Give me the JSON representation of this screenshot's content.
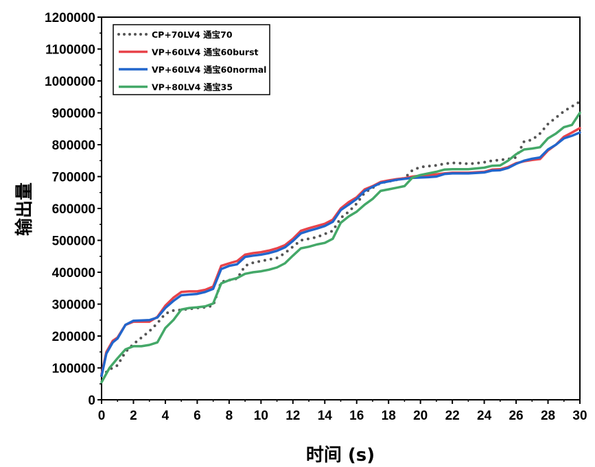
{
  "chart_data": {
    "type": "line",
    "xlabel": "时间 (s)",
    "ylabel": "输出量",
    "xlim": [
      0,
      30
    ],
    "ylim": [
      0,
      1200000
    ],
    "x_ticks": [
      0,
      2,
      4,
      6,
      8,
      10,
      12,
      14,
      16,
      18,
      20,
      22,
      24,
      26,
      28,
      30
    ],
    "y_ticks": [
      0,
      100000,
      200000,
      300000,
      400000,
      500000,
      600000,
      700000,
      800000,
      900000,
      1000000,
      1100000,
      1200000
    ],
    "grid": false,
    "legend_position": "top-left",
    "series": [
      {
        "name": "CP+70LV4 通宝70",
        "color": "#555555",
        "style": "dotted",
        "points": [
          [
            0,
            75000
          ],
          [
            0.5,
            95000
          ],
          [
            1,
            108000
          ],
          [
            1.5,
            150000
          ],
          [
            2,
            175000
          ],
          [
            2.5,
            195000
          ],
          [
            3,
            215000
          ],
          [
            3.5,
            240000
          ],
          [
            4,
            270000
          ],
          [
            4.5,
            280000
          ],
          [
            5,
            282000
          ],
          [
            5.5,
            285000
          ],
          [
            6,
            288000
          ],
          [
            6.5,
            290000
          ],
          [
            7,
            295000
          ],
          [
            7.5,
            370000
          ],
          [
            8,
            375000
          ],
          [
            8.5,
            380000
          ],
          [
            9,
            420000
          ],
          [
            9.5,
            430000
          ],
          [
            10,
            435000
          ],
          [
            10.5,
            440000
          ],
          [
            11,
            445000
          ],
          [
            11.5,
            460000
          ],
          [
            12,
            480000
          ],
          [
            12.5,
            500000
          ],
          [
            13,
            505000
          ],
          [
            13.5,
            510000
          ],
          [
            14,
            520000
          ],
          [
            14.5,
            530000
          ],
          [
            15,
            570000
          ],
          [
            15.5,
            590000
          ],
          [
            16,
            615000
          ],
          [
            16.5,
            650000
          ],
          [
            17,
            665000
          ],
          [
            17.5,
            680000
          ],
          [
            18,
            685000
          ],
          [
            18.5,
            690000
          ],
          [
            19,
            695000
          ],
          [
            19.5,
            720000
          ],
          [
            20,
            730000
          ],
          [
            20.5,
            733000
          ],
          [
            21,
            735000
          ],
          [
            21.5,
            740000
          ],
          [
            22,
            743000
          ],
          [
            22.5,
            742000
          ],
          [
            23,
            740000
          ],
          [
            23.5,
            742000
          ],
          [
            24,
            745000
          ],
          [
            24.5,
            750000
          ],
          [
            25,
            752000
          ],
          [
            25.5,
            755000
          ],
          [
            26,
            760000
          ],
          [
            26.5,
            810000
          ],
          [
            27,
            815000
          ],
          [
            27.5,
            835000
          ],
          [
            28,
            865000
          ],
          [
            28.5,
            885000
          ],
          [
            29,
            905000
          ],
          [
            29.5,
            920000
          ],
          [
            30,
            935000
          ]
        ]
      },
      {
        "name": "VP+60LV4 通宝60burst",
        "color": "#e8434a",
        "style": "solid",
        "points": [
          [
            0,
            80000
          ],
          [
            0.3,
            150000
          ],
          [
            0.7,
            185000
          ],
          [
            1,
            195000
          ],
          [
            1.5,
            235000
          ],
          [
            2,
            245000
          ],
          [
            3,
            245000
          ],
          [
            3.5,
            260000
          ],
          [
            4,
            295000
          ],
          [
            4.5,
            320000
          ],
          [
            5,
            338000
          ],
          [
            5.5,
            340000
          ],
          [
            6,
            340000
          ],
          [
            6.5,
            345000
          ],
          [
            7,
            355000
          ],
          [
            7.5,
            420000
          ],
          [
            8,
            428000
          ],
          [
            8.5,
            435000
          ],
          [
            9,
            455000
          ],
          [
            9.5,
            460000
          ],
          [
            10,
            463000
          ],
          [
            10.5,
            468000
          ],
          [
            11,
            475000
          ],
          [
            11.5,
            485000
          ],
          [
            12,
            505000
          ],
          [
            12.5,
            530000
          ],
          [
            13,
            538000
          ],
          [
            13.5,
            545000
          ],
          [
            14,
            552000
          ],
          [
            14.5,
            565000
          ],
          [
            15,
            600000
          ],
          [
            15.5,
            620000
          ],
          [
            16,
            635000
          ],
          [
            16.5,
            660000
          ],
          [
            17,
            670000
          ],
          [
            17.5,
            683000
          ],
          [
            18,
            688000
          ],
          [
            18.5,
            692000
          ],
          [
            19,
            695000
          ],
          [
            19.5,
            700000
          ],
          [
            20,
            703000
          ],
          [
            20.5,
            705000
          ],
          [
            21,
            707000
          ],
          [
            21.5,
            710000
          ],
          [
            22,
            712000
          ],
          [
            23,
            712000
          ],
          [
            24,
            715000
          ],
          [
            24.5,
            722000
          ],
          [
            25,
            723000
          ],
          [
            25.5,
            730000
          ],
          [
            26,
            742000
          ],
          [
            26.5,
            748000
          ],
          [
            27,
            752000
          ],
          [
            27.5,
            755000
          ],
          [
            28,
            782000
          ],
          [
            28.5,
            800000
          ],
          [
            29,
            825000
          ],
          [
            29.5,
            838000
          ],
          [
            30,
            852000
          ]
        ]
      },
      {
        "name": "VP+60LV4 通宝60normal",
        "color": "#2266cc",
        "style": "solid",
        "points": [
          [
            0,
            75000
          ],
          [
            0.3,
            145000
          ],
          [
            0.7,
            180000
          ],
          [
            1,
            192000
          ],
          [
            1.5,
            235000
          ],
          [
            2,
            248000
          ],
          [
            3,
            250000
          ],
          [
            3.5,
            258000
          ],
          [
            4,
            288000
          ],
          [
            4.5,
            310000
          ],
          [
            5,
            328000
          ],
          [
            5.5,
            330000
          ],
          [
            6,
            332000
          ],
          [
            6.5,
            338000
          ],
          [
            7,
            348000
          ],
          [
            7.5,
            410000
          ],
          [
            8,
            420000
          ],
          [
            8.5,
            425000
          ],
          [
            9,
            448000
          ],
          [
            9.5,
            452000
          ],
          [
            10,
            455000
          ],
          [
            10.5,
            460000
          ],
          [
            11,
            467000
          ],
          [
            11.5,
            478000
          ],
          [
            12,
            498000
          ],
          [
            12.5,
            522000
          ],
          [
            13,
            530000
          ],
          [
            13.5,
            537000
          ],
          [
            14,
            545000
          ],
          [
            14.5,
            558000
          ],
          [
            15,
            595000
          ],
          [
            15.5,
            612000
          ],
          [
            16,
            630000
          ],
          [
            16.5,
            655000
          ],
          [
            17,
            668000
          ],
          [
            17.5,
            680000
          ],
          [
            18,
            685000
          ],
          [
            18.5,
            690000
          ],
          [
            19,
            693000
          ],
          [
            19.5,
            696000
          ],
          [
            20,
            697000
          ],
          [
            20.5,
            698000
          ],
          [
            21,
            700000
          ],
          [
            21.5,
            708000
          ],
          [
            22,
            710000
          ],
          [
            23,
            710000
          ],
          [
            24,
            713000
          ],
          [
            24.5,
            719000
          ],
          [
            25,
            720000
          ],
          [
            25.5,
            727000
          ],
          [
            26,
            740000
          ],
          [
            26.5,
            750000
          ],
          [
            27,
            756000
          ],
          [
            27.5,
            760000
          ],
          [
            28,
            785000
          ],
          [
            28.5,
            800000
          ],
          [
            29,
            820000
          ],
          [
            29.5,
            828000
          ],
          [
            30,
            838000
          ]
        ]
      },
      {
        "name": "VP+80LV4 通宝35",
        "color": "#44a868",
        "style": "solid",
        "points": [
          [
            0,
            55000
          ],
          [
            0.5,
            100000
          ],
          [
            1,
            130000
          ],
          [
            1.5,
            158000
          ],
          [
            2,
            168000
          ],
          [
            2.5,
            168000
          ],
          [
            3,
            172000
          ],
          [
            3.5,
            180000
          ],
          [
            4,
            225000
          ],
          [
            4.5,
            250000
          ],
          [
            5,
            283000
          ],
          [
            5.5,
            288000
          ],
          [
            6,
            290000
          ],
          [
            6.5,
            293000
          ],
          [
            7,
            302000
          ],
          [
            7.5,
            365000
          ],
          [
            8,
            375000
          ],
          [
            8.5,
            382000
          ],
          [
            9,
            395000
          ],
          [
            9.5,
            400000
          ],
          [
            10,
            403000
          ],
          [
            10.5,
            408000
          ],
          [
            11,
            415000
          ],
          [
            11.5,
            428000
          ],
          [
            12,
            452000
          ],
          [
            12.5,
            475000
          ],
          [
            13,
            480000
          ],
          [
            13.5,
            487000
          ],
          [
            14,
            492000
          ],
          [
            14.5,
            505000
          ],
          [
            15,
            555000
          ],
          [
            15.5,
            575000
          ],
          [
            16,
            590000
          ],
          [
            16.5,
            612000
          ],
          [
            17,
            630000
          ],
          [
            17.5,
            655000
          ],
          [
            18,
            660000
          ],
          [
            18.5,
            665000
          ],
          [
            19,
            670000
          ],
          [
            19.5,
            697000
          ],
          [
            20,
            705000
          ],
          [
            20.5,
            710000
          ],
          [
            21,
            715000
          ],
          [
            21.5,
            722000
          ],
          [
            22,
            723000
          ],
          [
            23,
            723000
          ],
          [
            24,
            728000
          ],
          [
            24.5,
            734000
          ],
          [
            25,
            735000
          ],
          [
            25.5,
            750000
          ],
          [
            26,
            770000
          ],
          [
            26.5,
            785000
          ],
          [
            27,
            788000
          ],
          [
            27.5,
            792000
          ],
          [
            28,
            820000
          ],
          [
            28.5,
            835000
          ],
          [
            29,
            855000
          ],
          [
            29.5,
            862000
          ],
          [
            30,
            900000
          ]
        ]
      }
    ]
  }
}
